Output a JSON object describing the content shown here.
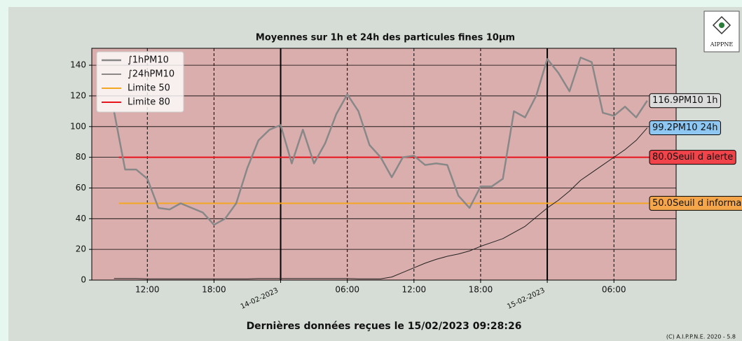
{
  "logo": "AIPPNE",
  "footer": "(C) A.I.P.P.N.E. 2020 - 5.8",
  "chart_data": {
    "type": "line",
    "title": "Moyennes sur 1h et 24h des particules fines 10µm",
    "x_label": "Dernières données reçues le 15/02/2023 09:28:26",
    "x": [
      "13-02-2023 09:00",
      "13-02-2023 10:00",
      "13-02-2023 11:00",
      "13-02-2023 12:00",
      "13-02-2023 13:00",
      "13-02-2023 14:00",
      "13-02-2023 15:00",
      "13-02-2023 16:00",
      "13-02-2023 17:00",
      "13-02-2023 18:00",
      "13-02-2023 19:00",
      "13-02-2023 20:00",
      "13-02-2023 21:00",
      "13-02-2023 22:00",
      "13-02-2023 23:00",
      "14-02-2023 00:00",
      "14-02-2023 01:00",
      "14-02-2023 02:00",
      "14-02-2023 03:00",
      "14-02-2023 04:00",
      "14-02-2023 05:00",
      "14-02-2023 06:00",
      "14-02-2023 07:00",
      "14-02-2023 08:00",
      "14-02-2023 09:00",
      "14-02-2023 10:00",
      "14-02-2023 11:00",
      "14-02-2023 12:00",
      "14-02-2023 13:00",
      "14-02-2023 14:00",
      "14-02-2023 15:00",
      "14-02-2023 16:00",
      "14-02-2023 17:00",
      "14-02-2023 18:00",
      "14-02-2023 19:00",
      "14-02-2023 20:00",
      "14-02-2023 21:00",
      "14-02-2023 22:00",
      "14-02-2023 23:00",
      "15-02-2023 00:00",
      "15-02-2023 01:00",
      "15-02-2023 02:00",
      "15-02-2023 03:00",
      "15-02-2023 04:00",
      "15-02-2023 05:00",
      "15-02-2023 06:00",
      "15-02-2023 07:00",
      "15-02-2023 08:00",
      "15-02-2023 09:00"
    ],
    "series": [
      {
        "name": "∫1hPM10",
        "color": "#888888",
        "width": 2.5,
        "values": [
          110,
          72,
          72,
          66,
          47,
          46,
          50,
          47,
          44,
          36,
          40,
          50,
          73,
          91,
          98,
          101,
          76,
          98,
          76,
          89,
          108,
          121,
          110,
          88,
          80,
          67,
          80,
          81,
          75,
          76,
          75,
          55,
          47,
          61,
          61,
          66,
          110,
          106,
          120,
          144,
          135,
          123,
          145,
          142,
          109,
          107,
          113,
          106,
          116.9
        ]
      },
      {
        "name": "∫24hPM10",
        "color": "#222222",
        "width": 1,
        "values": [
          1,
          1,
          1,
          0.8,
          0.8,
          0.8,
          0.8,
          0.8,
          0.8,
          0.8,
          0.8,
          0.8,
          0.8,
          1,
          1,
          1,
          1,
          1,
          1,
          1,
          1,
          1,
          0.8,
          0.8,
          0.8,
          2,
          5,
          8,
          11,
          13.5,
          15.5,
          17,
          19,
          22,
          24.5,
          27,
          31,
          35,
          41,
          47,
          52,
          58,
          65,
          70,
          75,
          80,
          85,
          91,
          99.2
        ]
      }
    ],
    "hlines": [
      {
        "name": "Limite 50",
        "value": 50,
        "color": "#f5a623"
      },
      {
        "name": "Limite 80",
        "value": 80,
        "color": "#e8141c"
      }
    ],
    "annotations": [
      {
        "y": 116.9,
        "text": "116.9PM10 1h",
        "color": "#dcdcdc"
      },
      {
        "y": 99.2,
        "text": "99.2PM10 24h",
        "color": "#8ec8f2"
      },
      {
        "y": 80,
        "text": "80.0Seuil d alerte",
        "color": "#f0434a"
      },
      {
        "y": 50,
        "text": "50.0Seuil d informa",
        "color": "#f5a64a"
      }
    ],
    "xlim": [
      "13-02-2023 07:00",
      "15-02-2023 11:36"
    ],
    "xticks": [
      {
        "value": "13-02-2023 12:00",
        "label": "12:00"
      },
      {
        "value": "13-02-2023 18:00",
        "label": "18:00"
      },
      {
        "value": "14-02-2023 00:00",
        "label": "14-02-2023"
      },
      {
        "value": "14-02-2023 06:00",
        "label": "06:00"
      },
      {
        "value": "14-02-2023 12:00",
        "label": "12:00"
      },
      {
        "value": "14-02-2023 18:00",
        "label": "18:00"
      },
      {
        "value": "15-02-2023 00:00",
        "label": "15-02-2023"
      },
      {
        "value": "15-02-2023 06:00",
        "label": "06:00"
      }
    ],
    "ylim": [
      0,
      151
    ],
    "yticks": [
      0,
      20,
      40,
      60,
      80,
      100,
      120,
      140
    ],
    "grid": true,
    "legend": "upper left",
    "background": "#dbaeae"
  }
}
